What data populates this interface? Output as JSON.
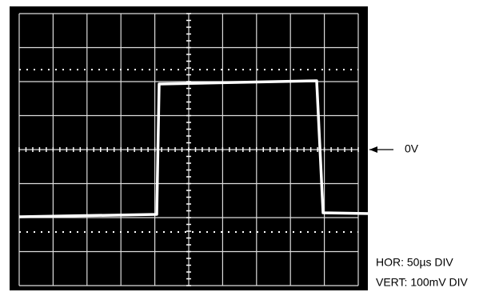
{
  "annotations": {
    "zero_label": "0V",
    "horizontal_scale": "HOR: 50µs DIV",
    "vertical_scale": "VERT: 100mV DIV"
  }
}
